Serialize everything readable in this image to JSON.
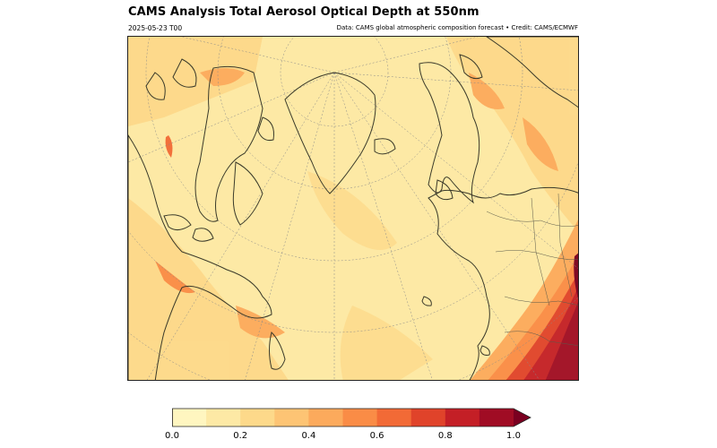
{
  "header": {
    "title": "CAMS Analysis Total Aerosol Optical Depth at 550nm",
    "date": "2025-05-23 T00",
    "credit": "Data: CAMS global atmospheric composition forecast • Credit: CAMS/ECMWF"
  },
  "colorbar": {
    "min": 0.0,
    "max": 1.0,
    "extend": "max",
    "bins": [
      "#fff6c0",
      "#fde9a5",
      "#fdd98a",
      "#fdc474",
      "#fcaa5c",
      "#fa8c46",
      "#f26a36",
      "#e0432a",
      "#c41f26",
      "#a00c24",
      "#7a0020"
    ],
    "ticks": [
      "0.0",
      "0.2",
      "0.4",
      "0.6",
      "0.8",
      "1.0"
    ]
  },
  "colors": {
    "background_aod": "#fde9a5",
    "land_outline": "#3a3a2a",
    "graticule": "#8a8a8a"
  }
}
